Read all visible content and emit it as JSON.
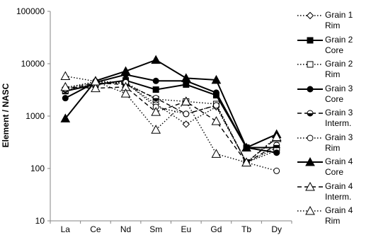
{
  "chart_data": {
    "type": "line",
    "x_tick_labels": [
      "La",
      "Ce",
      "Nd",
      "Sm",
      "Eu",
      "Gd",
      "Tb",
      "Dy"
    ],
    "ylabel": "Element / NASC",
    "y_scale": "log",
    "ylim": [
      10,
      100000
    ],
    "y_tick_labels": [
      "10",
      "100",
      "1000",
      "10000",
      "100000"
    ],
    "grid": false,
    "legend_position": "right",
    "series": [
      {
        "name": "Grain 1 Rim",
        "line": "dotted",
        "marker": "diamond-open",
        "values": [
          3500,
          4500,
          4200,
          1700,
          700,
          1500,
          130,
          250
        ]
      },
      {
        "name": "Grain 2 Core",
        "line": "solid",
        "marker": "square-filled",
        "values": [
          3000,
          4000,
          4800,
          3200,
          4000,
          2500,
          250,
          250
        ]
      },
      {
        "name": "Grain 2 Rim",
        "line": "dotted",
        "marker": "square-open",
        "values": [
          3100,
          4200,
          4300,
          2100,
          1900,
          1700,
          130,
          220
        ]
      },
      {
        "name": "Grain 3 Core",
        "line": "solid",
        "marker": "circle-filled",
        "values": [
          2200,
          4400,
          6200,
          4700,
          4700,
          2800,
          250,
          200
        ]
      },
      {
        "name": "Grain 3 Interm.",
        "line": "dashed",
        "marker": "circle-half",
        "values": [
          3200,
          4300,
          4000,
          2200,
          1100,
          1600,
          130,
          280
        ]
      },
      {
        "name": "Grain 3 Rim",
        "line": "dotted",
        "marker": "circle-open",
        "values": [
          3300,
          4600,
          4400,
          1500,
          1100,
          1600,
          130,
          90
        ]
      },
      {
        "name": "Grain 4 Core",
        "line": "solid",
        "marker": "triangle-filled",
        "values": [
          900,
          4700,
          7200,
          11800,
          5300,
          4900,
          250,
          450
        ]
      },
      {
        "name": "Grain 4 Interm.",
        "line": "dashed",
        "marker": "triangle-open",
        "values": [
          3600,
          3400,
          3600,
          1200,
          1900,
          800,
          130,
          380
        ]
      },
      {
        "name": "Grain 4 Rim",
        "line": "dotted",
        "marker": "triangle-open",
        "values": [
          5800,
          4600,
          2700,
          550,
          1900,
          190,
          130,
          400
        ]
      }
    ]
  }
}
